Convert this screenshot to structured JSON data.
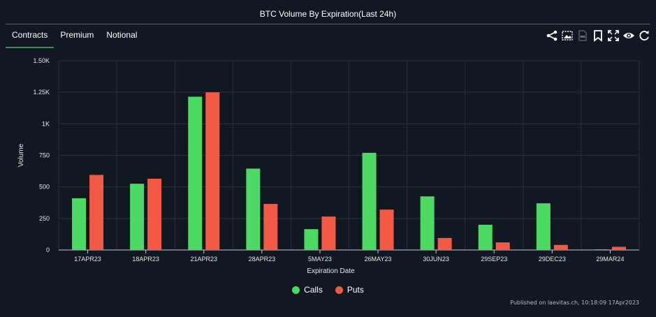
{
  "title": "BTC Volume By Expiration(Last 24h)",
  "tabs": [
    {
      "label": "Contracts",
      "active": true
    },
    {
      "label": "Premium",
      "active": false
    },
    {
      "label": "Notional",
      "active": false
    }
  ],
  "toolbar": {
    "icons": [
      "share-icon",
      "image-export-icon",
      "pdf-export-icon",
      "bookmark-icon",
      "fullscreen-icon",
      "eye-icon",
      "refresh-icon"
    ]
  },
  "credit": "Published on laevitas.ch, 10:18:09 17Apr2023",
  "colors": {
    "calls": "#4cd964",
    "puts": "#f25a46",
    "grid": "#2a3037",
    "axis": "#c8c8c8"
  },
  "chart_data": {
    "type": "bar",
    "xlabel": "Expiration Date",
    "ylabel": "Volume",
    "ylim": [
      0,
      1500
    ],
    "yticks": [
      0,
      250,
      500,
      750,
      1000,
      1250,
      1500
    ],
    "ytick_labels": [
      "0",
      "250",
      "500",
      "750",
      "1K",
      "1.25K",
      "1.50K"
    ],
    "categories": [
      "17APR23",
      "18APR23",
      "21APR23",
      "28APR23",
      "5MAY23",
      "26MAY23",
      "30JUN23",
      "29SEP23",
      "29DEC23",
      "29MAR24"
    ],
    "series": [
      {
        "name": "Calls",
        "values": [
          410,
          525,
          1215,
          645,
          165,
          770,
          425,
          200,
          370,
          5
        ]
      },
      {
        "name": "Puts",
        "values": [
          595,
          565,
          1250,
          365,
          265,
          320,
          95,
          60,
          40,
          25
        ]
      }
    ],
    "legend": "bottom-center",
    "grid": true
  }
}
